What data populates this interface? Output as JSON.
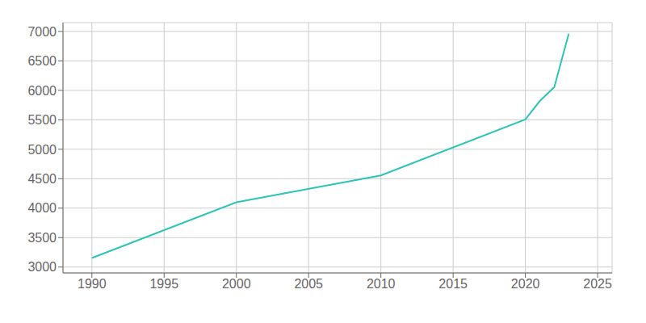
{
  "chart_data": {
    "type": "line",
    "x": [
      1990,
      2000,
      2010,
      2020,
      2021,
      2022,
      2023
    ],
    "values": [
      3153,
      4100,
      4556,
      5507,
      5820,
      6054,
      6960
    ],
    "color": "#2ec4b6",
    "xlim": [
      1988,
      2026
    ],
    "ylim": [
      2900,
      7150
    ],
    "xticks": [
      1990,
      1995,
      2000,
      2005,
      2010,
      2015,
      2020,
      2025
    ],
    "yticks": [
      3000,
      3500,
      4000,
      4500,
      5000,
      5500,
      6000,
      6500,
      7000
    ],
    "grid": true
  }
}
